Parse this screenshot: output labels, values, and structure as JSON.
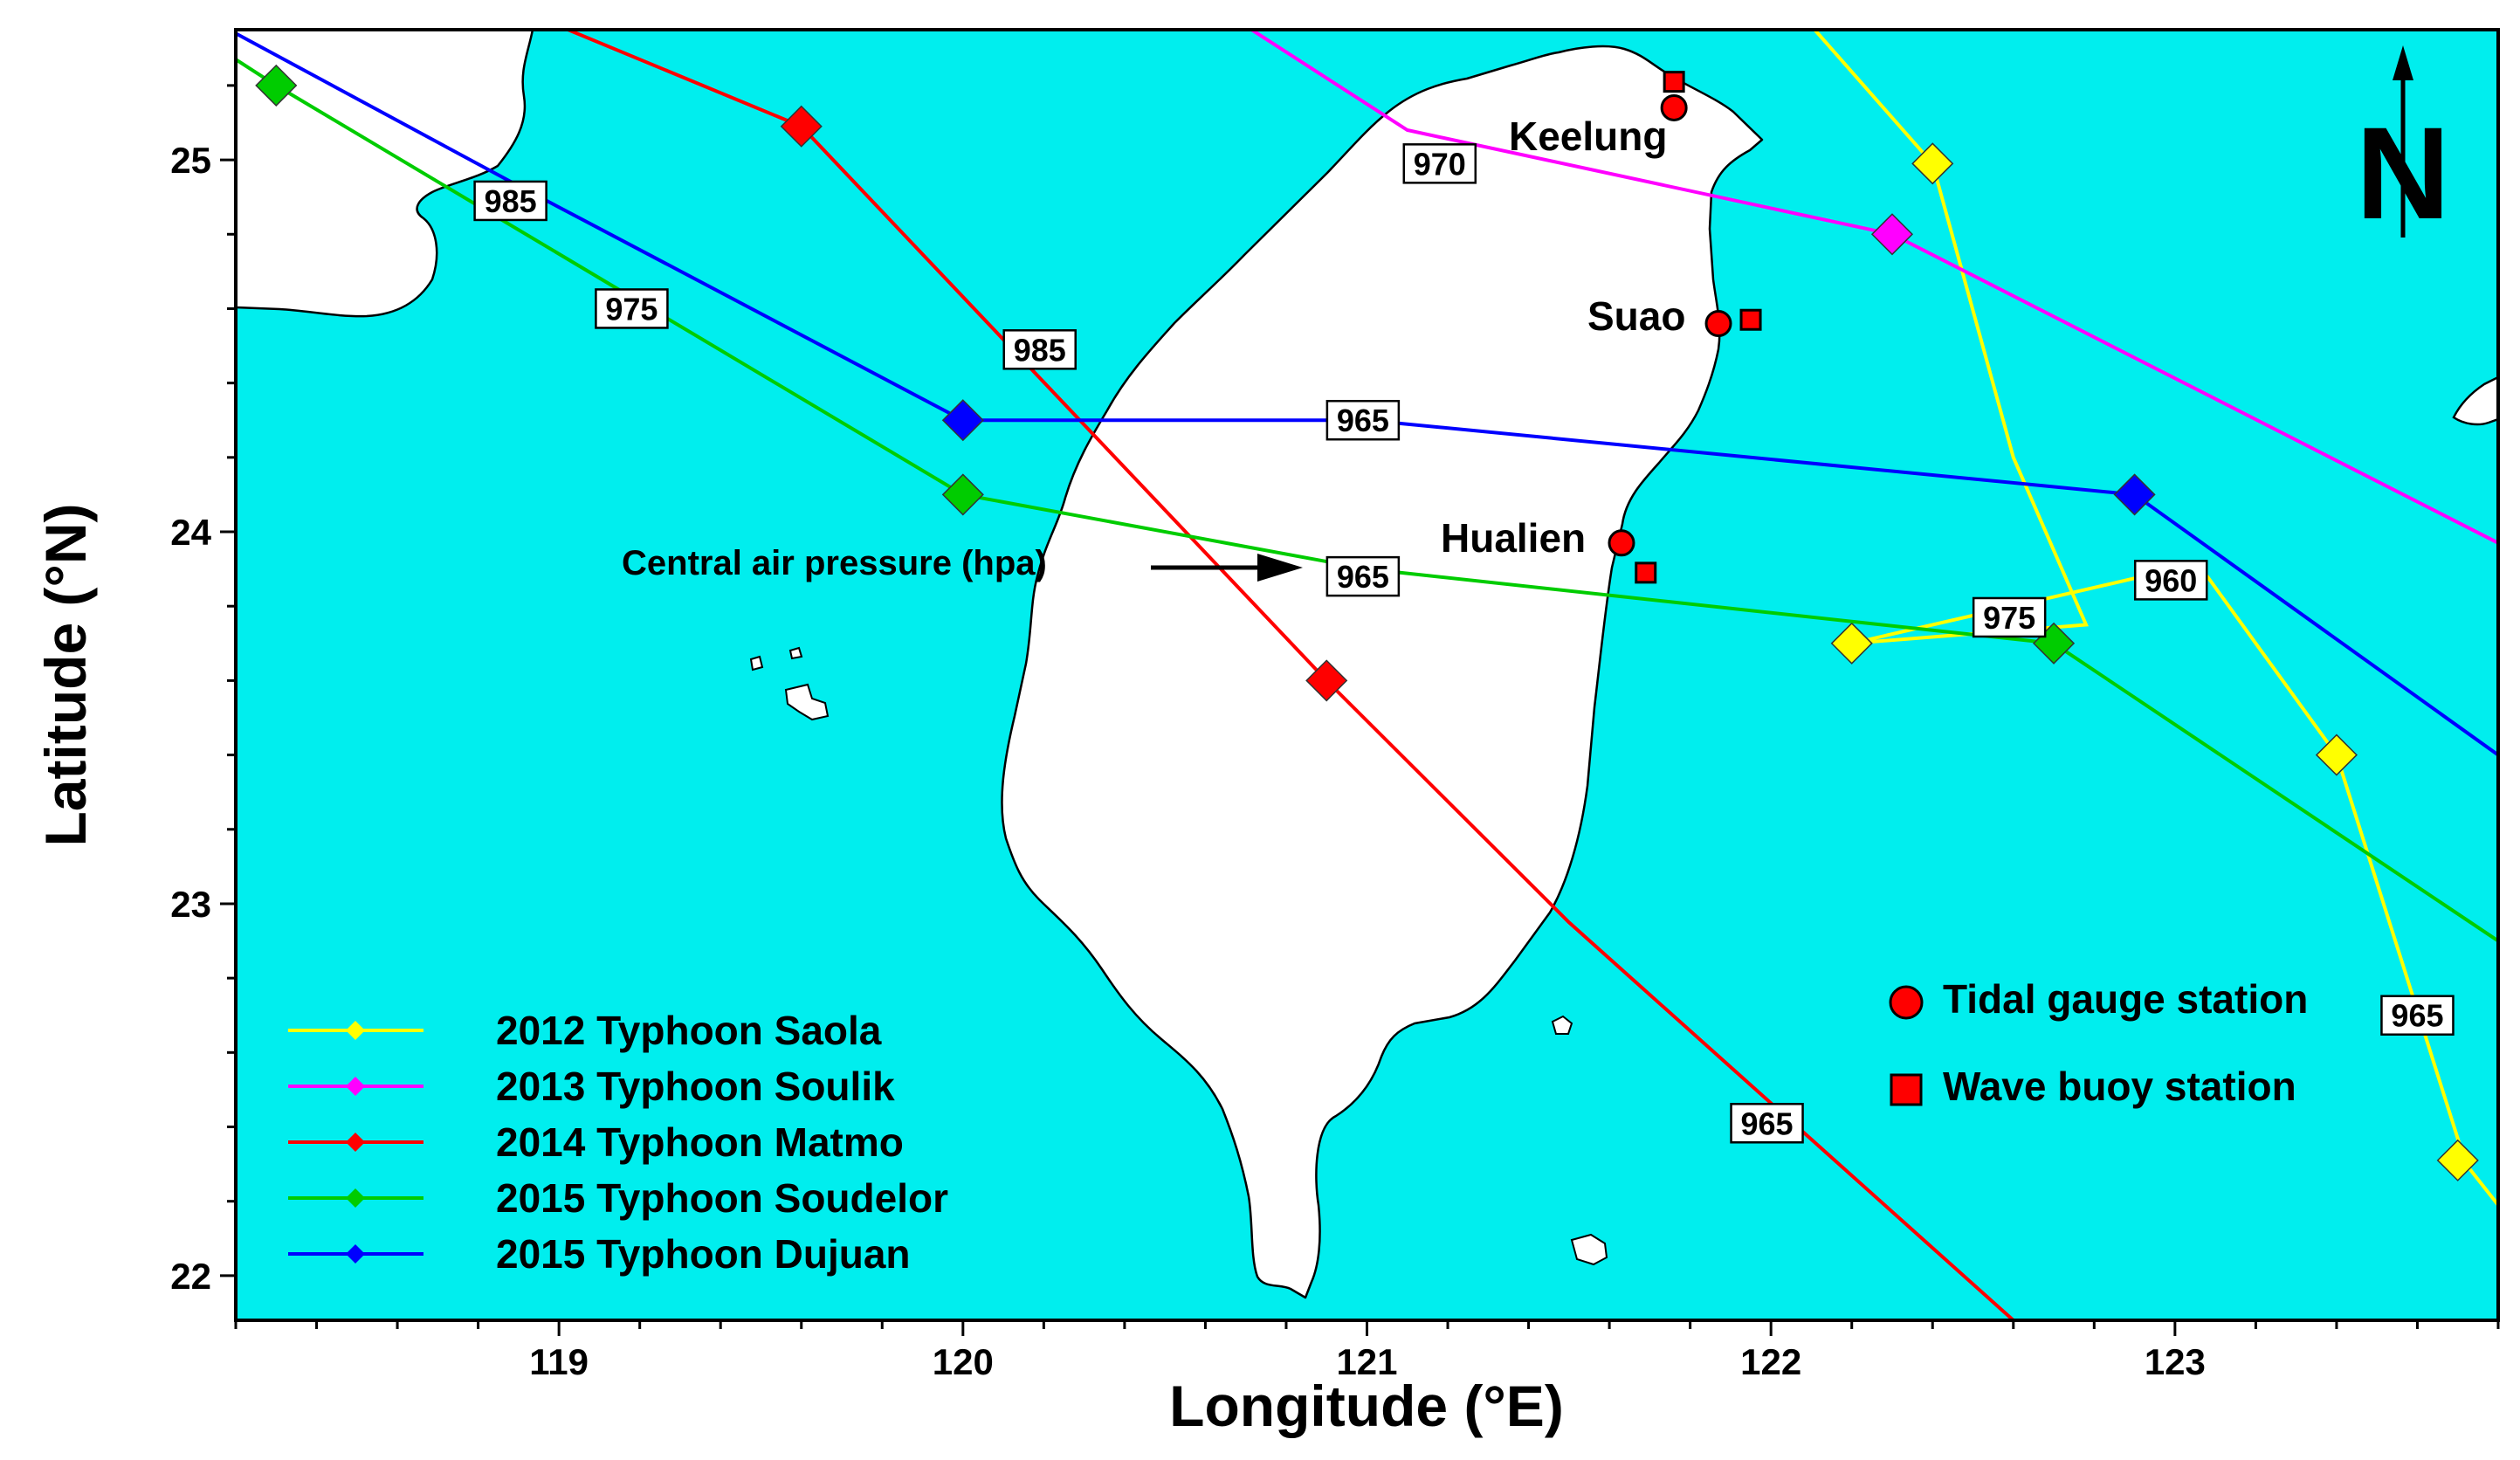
{
  "map": {
    "x_axis_title": "Longitude",
    "x_axis_unit": "(°E)",
    "y_axis_title": "Latitude",
    "y_axis_unit": "(°N)",
    "lon_range": [
      118.2,
      123.8
    ],
    "lat_range": [
      21.88,
      25.35
    ],
    "x_ticks": [
      {
        "value": 119,
        "label": "119"
      },
      {
        "value": 120,
        "label": "120"
      },
      {
        "value": 121,
        "label": "121"
      },
      {
        "value": 122,
        "label": "122"
      },
      {
        "value": 123,
        "label": "123"
      }
    ],
    "y_ticks": [
      {
        "value": 22,
        "label": "22"
      },
      {
        "value": 23,
        "label": "23"
      },
      {
        "value": 24,
        "label": "24"
      },
      {
        "value": 25,
        "label": "25"
      }
    ],
    "north_arrow": "N",
    "colors": {
      "sea": "#00eeee",
      "land": "#ffffff",
      "coast": "#000000"
    }
  },
  "places": [
    {
      "name": "Keelung"
    },
    {
      "name": "Suao"
    },
    {
      "name": "Hualien"
    }
  ],
  "stations": {
    "tidal_gauge": [
      {
        "lon": 121.76,
        "lat": 25.14
      },
      {
        "lon": 121.87,
        "lat": 24.56
      },
      {
        "lon": 121.63,
        "lat": 23.97
      }
    ],
    "wave_buoy": [
      {
        "lon": 121.76,
        "lat": 25.21
      },
      {
        "lon": 121.95,
        "lat": 24.57
      },
      {
        "lon": 121.69,
        "lat": 23.89
      }
    ]
  },
  "tracks": [
    {
      "name": "2012 Typhoon Saola",
      "color": "#ffff00",
      "points": [
        [
          122.1,
          25.36
        ],
        [
          122.4,
          24.99
        ],
        [
          122.6,
          24.2
        ],
        [
          122.78,
          23.75
        ],
        [
          122.2,
          23.7
        ],
        [
          123.0,
          23.9
        ],
        [
          123.08,
          23.88
        ],
        [
          123.4,
          23.4
        ],
        [
          123.72,
          22.3
        ],
        [
          123.8,
          22.19
        ]
      ],
      "markers": [
        [
          122.4,
          24.99
        ],
        [
          122.2,
          23.7
        ],
        [
          123.4,
          23.4
        ],
        [
          123.7,
          22.31
        ]
      ]
    },
    {
      "name": "2013 Typhoon Soulik",
      "color": "#ff00ff",
      "points": [
        [
          120.7,
          25.36
        ],
        [
          121.1,
          25.08
        ],
        [
          122.3,
          24.8
        ],
        [
          123.8,
          23.97
        ]
      ],
      "markers": [
        [
          122.3,
          24.8
        ]
      ]
    },
    {
      "name": "2014 Typhoon Matmo",
      "color": "#ff0000",
      "points": [
        [
          119.0,
          25.36
        ],
        [
          119.6,
          25.09
        ],
        [
          120.9,
          23.6
        ],
        [
          121.5,
          22.95
        ],
        [
          122.6,
          21.88
        ]
      ],
      "markers": [
        [
          119.6,
          25.09
        ],
        [
          120.9,
          23.6
        ]
      ]
    },
    {
      "name": "2015 Typhoon Soudelor",
      "color": "#00cc00",
      "points": [
        [
          118.2,
          25.27
        ],
        [
          118.3,
          25.2
        ],
        [
          120.0,
          24.1
        ],
        [
          121.0,
          23.9
        ],
        [
          122.7,
          23.7
        ],
        [
          123.8,
          22.9
        ]
      ],
      "markers": [
        [
          118.3,
          25.2
        ],
        [
          120.0,
          24.1
        ],
        [
          122.7,
          23.7
        ]
      ]
    },
    {
      "name": "2015 Typhoon Dujuan",
      "color": "#0000ff",
      "points": [
        [
          118.2,
          25.34
        ],
        [
          118.9,
          24.93
        ],
        [
          120.0,
          24.3
        ],
        [
          121.0,
          24.3
        ],
        [
          122.9,
          24.1
        ],
        [
          123.8,
          23.4
        ]
      ],
      "markers": [
        [
          120.0,
          24.3
        ],
        [
          122.9,
          24.1
        ]
      ]
    }
  ],
  "pressure_labels": [
    {
      "text": "985",
      "lon": 118.88,
      "lat": 24.89
    },
    {
      "text": "975",
      "lon": 119.18,
      "lat": 24.6
    },
    {
      "text": "985",
      "lon": 120.19,
      "lat": 24.49
    },
    {
      "text": "970",
      "lon": 121.18,
      "lat": 24.99
    },
    {
      "text": "965",
      "lon": 120.99,
      "lat": 24.3
    },
    {
      "text": "965",
      "lon": 120.99,
      "lat": 23.88
    },
    {
      "text": "975",
      "lon": 122.59,
      "lat": 23.77
    },
    {
      "text": "960",
      "lon": 122.99,
      "lat": 23.87
    },
    {
      "text": "965",
      "lon": 121.99,
      "lat": 22.41
    },
    {
      "text": "965",
      "lon": 123.6,
      "lat": 22.7
    }
  ],
  "annotation": {
    "text": "Central air pressure (hpa)"
  },
  "legend": {
    "tracks": [
      {
        "label": "2012 Typhoon Saola",
        "color": "#ffff00"
      },
      {
        "label": "2013 Typhoon Soulik",
        "color": "#ff00ff"
      },
      {
        "label": "2014 Typhoon Matmo",
        "color": "#ff0000"
      },
      {
        "label": "2015 Typhoon Soudelor",
        "color": "#00cc00"
      },
      {
        "label": "2015 Typhoon Dujuan",
        "color": "#0000ff"
      }
    ],
    "stations": [
      {
        "label": "Tidal gauge station",
        "symbol": "circle",
        "color": "#ff0000"
      },
      {
        "label": "Wave buoy station",
        "symbol": "square",
        "color": "#ff0000"
      }
    ]
  }
}
